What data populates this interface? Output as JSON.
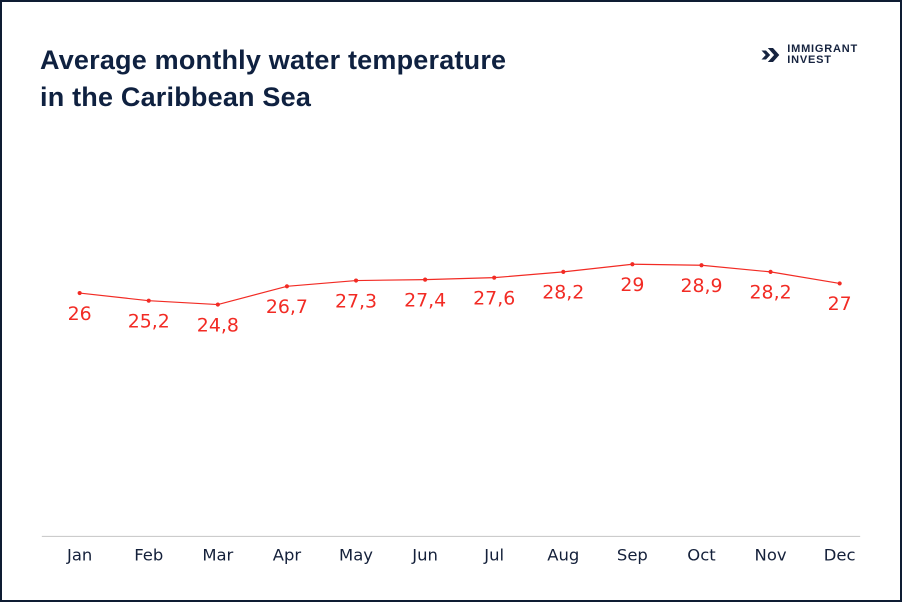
{
  "header": {
    "title_line1": "Average monthly water temperature",
    "title_line2": "in the Caribbean Sea",
    "logo_line1": "IMMIGRANT",
    "logo_line2": "INVEST"
  },
  "colors": {
    "accent_red": "#f22b24",
    "navy": "#14203a",
    "axis_gray": "#cccccc",
    "border_navy": "#0e1c33"
  },
  "chart_data": {
    "type": "line",
    "title": "Average monthly water temperature in the Caribbean Sea",
    "categories": [
      "Jan",
      "Feb",
      "Mar",
      "Apr",
      "May",
      "Jun",
      "Jul",
      "Aug",
      "Sep",
      "Oct",
      "Nov",
      "Dec"
    ],
    "values": [
      26,
      25.2,
      24.8,
      26.7,
      27.3,
      27.4,
      27.6,
      28.2,
      29,
      28.9,
      28.2,
      27
    ],
    "value_labels": [
      "26",
      "25,2",
      "24,8",
      "26,7",
      "27,3",
      "27,4",
      "27,6",
      "28,2",
      "29",
      "28,9",
      "28,2",
      "27"
    ],
    "xlabel": "",
    "ylabel": "",
    "ylim": [
      24,
      30
    ],
    "series_color": "#f22b24",
    "marker": "dot",
    "grid": false,
    "legend": false,
    "data_labels_shown": true
  }
}
